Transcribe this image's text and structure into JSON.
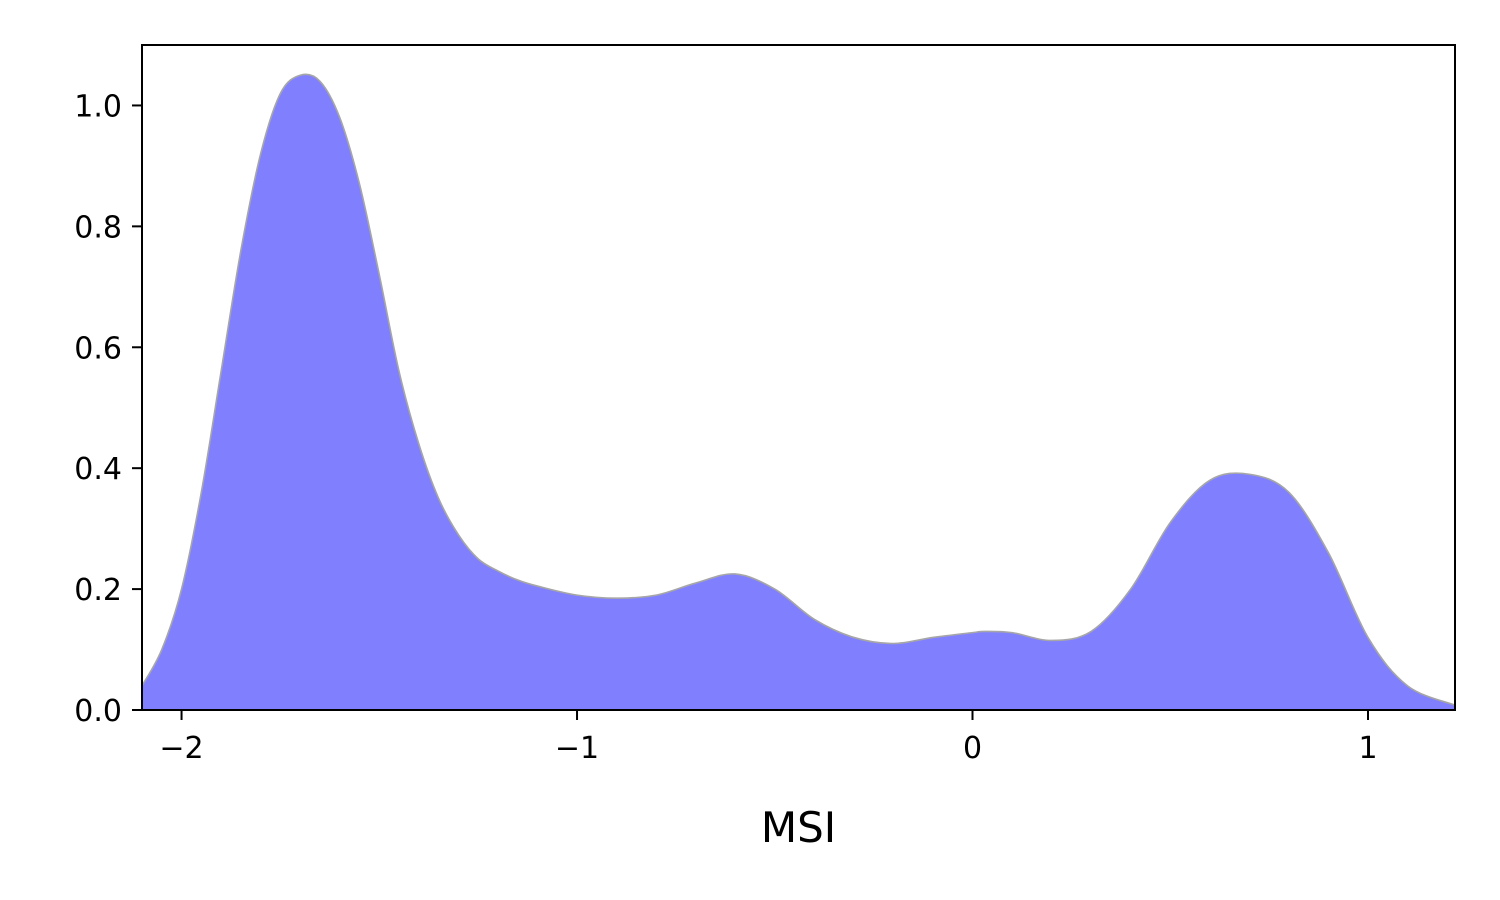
{
  "chart_data": {
    "type": "area",
    "title": "",
    "xlabel": "MSI",
    "ylabel": "",
    "xlim": [
      -2.1,
      1.22
    ],
    "ylim": [
      0.0,
      1.1
    ],
    "xticks": [
      {
        "value": -2,
        "label": "−2"
      },
      {
        "value": -1,
        "label": "−1"
      },
      {
        "value": 0,
        "label": "0"
      },
      {
        "value": 1,
        "label": "1"
      }
    ],
    "yticks": [
      {
        "value": 0.0,
        "label": "0.0"
      },
      {
        "value": 0.2,
        "label": "0.2"
      },
      {
        "value": 0.4,
        "label": "0.4"
      },
      {
        "value": 0.6,
        "label": "0.6"
      },
      {
        "value": 0.8,
        "label": "0.8"
      },
      {
        "value": 1.0,
        "label": "1.0"
      }
    ],
    "grid": false,
    "fill_color": "#8080ff",
    "line_color": "#a6a6a6",
    "series": [
      {
        "x": [
          -2.1,
          -2.05,
          -2.0,
          -1.95,
          -1.9,
          -1.85,
          -1.8,
          -1.75,
          -1.7,
          -1.65,
          -1.6,
          -1.55,
          -1.5,
          -1.45,
          -1.4,
          -1.35,
          -1.3,
          -1.25,
          -1.2,
          -1.15,
          -1.1,
          -1.0,
          -0.9,
          -0.8,
          -0.7,
          -0.6,
          -0.5,
          -0.4,
          -0.3,
          -0.2,
          -0.1,
          0.0,
          0.03,
          0.1,
          0.2,
          0.3,
          0.4,
          0.5,
          0.6,
          0.7,
          0.8,
          0.9,
          1.0,
          1.1,
          1.22
        ],
        "y": [
          0.04,
          0.1,
          0.2,
          0.36,
          0.56,
          0.76,
          0.92,
          1.02,
          1.05,
          1.04,
          0.98,
          0.87,
          0.72,
          0.56,
          0.44,
          0.35,
          0.29,
          0.25,
          0.23,
          0.215,
          0.205,
          0.19,
          0.185,
          0.19,
          0.21,
          0.225,
          0.2,
          0.15,
          0.12,
          0.11,
          0.12,
          0.128,
          0.13,
          0.128,
          0.115,
          0.13,
          0.2,
          0.31,
          0.38,
          0.39,
          0.36,
          0.26,
          0.12,
          0.04,
          0.008
        ]
      }
    ]
  }
}
